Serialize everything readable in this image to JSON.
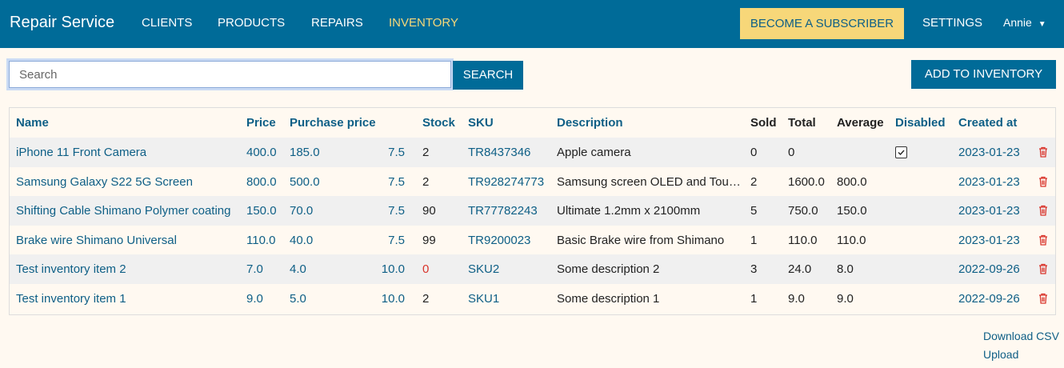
{
  "nav": {
    "brand": "Repair Service",
    "links": [
      "CLIENTS",
      "PRODUCTS",
      "REPAIRS",
      "INVENTORY"
    ],
    "active": 3,
    "subscribe": "BECOME A SUBSCRIBER",
    "settings": "SETTINGS",
    "user": "Annie"
  },
  "toolbar": {
    "search_placeholder": "Search",
    "search_button": "SEARCH",
    "add_button": "ADD TO INVENTORY"
  },
  "table": {
    "headers": {
      "name": "Name",
      "price": "Price",
      "purchase_price": "Purchase price",
      "stock": "Stock",
      "sku": "SKU",
      "description": "Description",
      "sold": "Sold",
      "total": "Total",
      "average": "Average",
      "disabled": "Disabled",
      "created_at": "Created at"
    },
    "rows": [
      {
        "name": "iPhone 11 Front Camera",
        "price": "400.0",
        "purchase_price": "185.0",
        "markup": "7.5",
        "stock": "2",
        "sku": "TR8437346",
        "description": "Apple camera",
        "sold": "0",
        "total": "0",
        "disabled": true,
        "created_at": "2023-01-23"
      },
      {
        "name": "Samsung Galaxy S22 5G Screen",
        "price": "800.0",
        "purchase_price": "500.0",
        "markup": "7.5",
        "stock": "2",
        "sku": "TR928274773",
        "description": "Samsung screen OLED and Tou…",
        "sold": "2",
        "total": "1600.0",
        "average": "800.0",
        "disabled": false,
        "created_at": "2023-01-23"
      },
      {
        "name": "Shifting Cable Shimano Polymer coating",
        "price": "150.0",
        "purchase_price": "70.0",
        "markup": "7.5",
        "stock": "90",
        "sku": "TR77782243",
        "description": "Ultimate 1.2mm x 2100mm",
        "sold": "5",
        "total": "750.0",
        "average": "150.0",
        "disabled": false,
        "created_at": "2023-01-23"
      },
      {
        "name": "Brake wire Shimano Universal",
        "price": "110.0",
        "purchase_price": "40.0",
        "markup": "7.5",
        "stock": "99",
        "sku": "TR9200023",
        "description": "Basic Brake wire from Shimano",
        "sold": "1",
        "total": "110.0",
        "average": "110.0",
        "disabled": false,
        "created_at": "2023-01-23"
      },
      {
        "name": "Test inventory item 2",
        "price": "7.0",
        "purchase_price": "4.0",
        "markup": "10.0",
        "stock": "0",
        "stock_color": "#d9342b",
        "sku": "SKU2",
        "description": "Some description 2",
        "sold": "3",
        "total": "24.0",
        "average": "8.0",
        "disabled": false,
        "created_at": "2022-09-26"
      },
      {
        "name": "Test inventory item 1",
        "price": "9.0",
        "purchase_price": "5.0",
        "markup": "10.0",
        "stock": "2",
        "sku": "SKU1",
        "description": "Some description 1",
        "sold": "1",
        "total": "9.0",
        "average": "9.0",
        "disabled": false,
        "created_at": "2022-09-26"
      }
    ]
  },
  "footer": {
    "links": [
      "Download CSV",
      "Upload"
    ]
  }
}
